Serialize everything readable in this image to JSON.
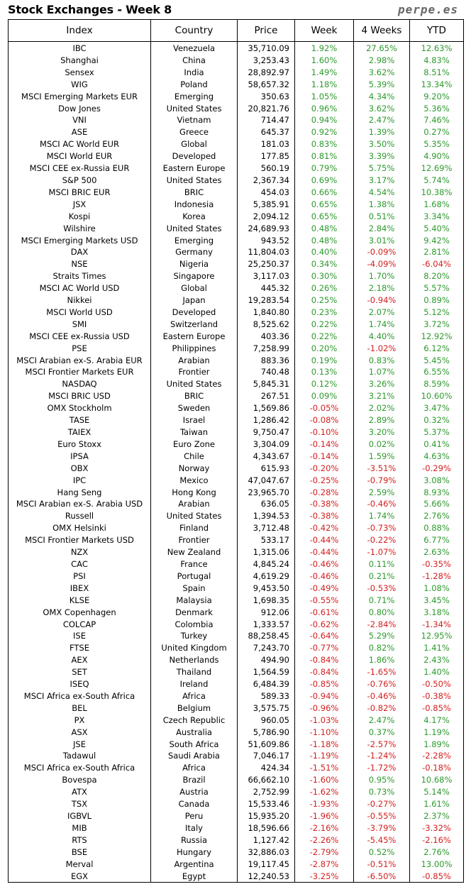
{
  "title": "Stock Exchanges - Week 8",
  "brand": "perpe.es",
  "colors": {
    "positive": "#2e9a2e",
    "negative": "#d42020"
  },
  "columns": [
    "Index",
    "Country",
    "Price",
    "Week",
    "4 Weeks",
    "YTD"
  ],
  "rows": [
    [
      "IBC",
      "Venezuela",
      "35,710.09",
      "1.92%",
      "27.65%",
      "12.63%"
    ],
    [
      "Shanghai",
      "China",
      "3,253.43",
      "1.60%",
      "2.98%",
      "4.83%"
    ],
    [
      "Sensex",
      "India",
      "28,892.97",
      "1.49%",
      "3.62%",
      "8.51%"
    ],
    [
      "WIG",
      "Poland",
      "58,657.32",
      "1.18%",
      "5.39%",
      "13.34%"
    ],
    [
      "MSCI Emerging Markets EUR",
      "Emerging",
      "350.63",
      "1.05%",
      "4.34%",
      "9.20%"
    ],
    [
      "Dow Jones",
      "United States",
      "20,821.76",
      "0.96%",
      "3.62%",
      "5.36%"
    ],
    [
      "VNI",
      "Vietnam",
      "714.47",
      "0.94%",
      "2.47%",
      "7.46%"
    ],
    [
      "ASE",
      "Greece",
      "645.37",
      "0.92%",
      "1.39%",
      "0.27%"
    ],
    [
      "MSCI AC World EUR",
      "Global",
      "181.03",
      "0.83%",
      "3.50%",
      "5.35%"
    ],
    [
      "MSCI World EUR",
      "Developed",
      "177.85",
      "0.81%",
      "3.39%",
      "4.90%"
    ],
    [
      "MSCI CEE ex-Russia EUR",
      "Eastern Europe",
      "560.19",
      "0.79%",
      "5.75%",
      "12.69%"
    ],
    [
      "S&P 500",
      "United States",
      "2,367.34",
      "0.69%",
      "3.17%",
      "5.74%"
    ],
    [
      "MSCI BRIC EUR",
      "BRIC",
      "454.03",
      "0.66%",
      "4.54%",
      "10.38%"
    ],
    [
      "JSX",
      "Indonesia",
      "5,385.91",
      "0.65%",
      "1.38%",
      "1.68%"
    ],
    [
      "Kospi",
      "Korea",
      "2,094.12",
      "0.65%",
      "0.51%",
      "3.34%"
    ],
    [
      "Wilshire",
      "United States",
      "24,689.93",
      "0.48%",
      "2.84%",
      "5.40%"
    ],
    [
      "MSCI Emerging Markets USD",
      "Emerging",
      "943.52",
      "0.48%",
      "3.01%",
      "9.42%"
    ],
    [
      "DAX",
      "Germany",
      "11,804.03",
      "0.40%",
      "-0.09%",
      "2.81%"
    ],
    [
      "NSE",
      "Nigeria",
      "25,250.37",
      "0.34%",
      "-4.09%",
      "-6.04%"
    ],
    [
      "Straits Times",
      "Singapore",
      "3,117.03",
      "0.30%",
      "1.70%",
      "8.20%"
    ],
    [
      "MSCI AC World USD",
      "Global",
      "445.32",
      "0.26%",
      "2.18%",
      "5.57%"
    ],
    [
      "Nikkei",
      "Japan",
      "19,283.54",
      "0.25%",
      "-0.94%",
      "0.89%"
    ],
    [
      "MSCI World USD",
      "Developed",
      "1,840.80",
      "0.23%",
      "2.07%",
      "5.12%"
    ],
    [
      "SMI",
      "Switzerland",
      "8,525.62",
      "0.22%",
      "1.74%",
      "3.72%"
    ],
    [
      "MSCI CEE ex-Russia USD",
      "Eastern Europe",
      "403.36",
      "0.22%",
      "4.40%",
      "12.92%"
    ],
    [
      "PSE",
      "Philippines",
      "7,258.99",
      "0.20%",
      "-1.02%",
      "6.12%"
    ],
    [
      "MSCI Arabian ex-S. Arabia EUR",
      "Arabian",
      "883.36",
      "0.19%",
      "0.83%",
      "5.45%"
    ],
    [
      "MSCI Frontier Markets EUR",
      "Frontier",
      "740.48",
      "0.13%",
      "1.07%",
      "6.55%"
    ],
    [
      "NASDAQ",
      "United States",
      "5,845.31",
      "0.12%",
      "3.26%",
      "8.59%"
    ],
    [
      "MSCI BRIC USD",
      "BRIC",
      "267.51",
      "0.09%",
      "3.21%",
      "10.60%"
    ],
    [
      "OMX Stockholm",
      "Sweden",
      "1,569.86",
      "-0.05%",
      "2.02%",
      "3.47%"
    ],
    [
      "TASE",
      "Israel",
      "1,286.42",
      "-0.08%",
      "2.89%",
      "0.32%"
    ],
    [
      "TAIEX",
      "Taiwan",
      "9,750.47",
      "-0.10%",
      "3.20%",
      "5.37%"
    ],
    [
      "Euro Stoxx",
      "Euro Zone",
      "3,304.09",
      "-0.14%",
      "0.02%",
      "0.41%"
    ],
    [
      "IPSA",
      "Chile",
      "4,343.67",
      "-0.14%",
      "1.59%",
      "4.63%"
    ],
    [
      "OBX",
      "Norway",
      "615.93",
      "-0.20%",
      "-3.51%",
      "-0.29%"
    ],
    [
      "IPC",
      "Mexico",
      "47,047.67",
      "-0.25%",
      "-0.79%",
      "3.08%"
    ],
    [
      "Hang Seng",
      "Hong Kong",
      "23,965.70",
      "-0.28%",
      "2.59%",
      "8.93%"
    ],
    [
      "MSCI Arabian ex-S. Arabia USD",
      "Arabian",
      "636.05",
      "-0.38%",
      "-0.46%",
      "5.66%"
    ],
    [
      "Russell",
      "United States",
      "1,394.53",
      "-0.38%",
      "1.74%",
      "2.76%"
    ],
    [
      "OMX Helsinki",
      "Finland",
      "3,712.48",
      "-0.42%",
      "-0.73%",
      "0.88%"
    ],
    [
      "MSCI Frontier Markets USD",
      "Frontier",
      "533.17",
      "-0.44%",
      "-0.22%",
      "6.77%"
    ],
    [
      "NZX",
      "New Zealand",
      "1,315.06",
      "-0.44%",
      "-1.07%",
      "2.63%"
    ],
    [
      "CAC",
      "France",
      "4,845.24",
      "-0.46%",
      "0.11%",
      "-0.35%"
    ],
    [
      "PSI",
      "Portugal",
      "4,619.29",
      "-0.46%",
      "0.21%",
      "-1.28%"
    ],
    [
      "IBEX",
      "Spain",
      "9,453.50",
      "-0.49%",
      "-0.53%",
      "1.08%"
    ],
    [
      "KLSE",
      "Malaysia",
      "1,698.35",
      "-0.55%",
      "0.71%",
      "3.45%"
    ],
    [
      "OMX Copenhagen",
      "Denmark",
      "912.06",
      "-0.61%",
      "0.80%",
      "3.18%"
    ],
    [
      "COLCAP",
      "Colombia",
      "1,333.57",
      "-0.62%",
      "-2.84%",
      "-1.34%"
    ],
    [
      "ISE",
      "Turkey",
      "88,258.45",
      "-0.64%",
      "5.29%",
      "12.95%"
    ],
    [
      "FTSE",
      "United Kingdom",
      "7,243.70",
      "-0.77%",
      "0.82%",
      "1.41%"
    ],
    [
      "AEX",
      "Netherlands",
      "494.90",
      "-0.84%",
      "1.86%",
      "2.43%"
    ],
    [
      "SET",
      "Thailand",
      "1,564.59",
      "-0.84%",
      "-1.65%",
      "1.40%"
    ],
    [
      "ISEQ",
      "Ireland",
      "6,484.39",
      "-0.85%",
      "-0.76%",
      "-0.50%"
    ],
    [
      "MSCI Africa ex-South Africa",
      "Africa",
      "589.33",
      "-0.94%",
      "-0.46%",
      "-0.38%"
    ],
    [
      "BEL",
      "Belgium",
      "3,575.75",
      "-0.96%",
      "-0.82%",
      "-0.85%"
    ],
    [
      "PX",
      "Czech Republic",
      "960.05",
      "-1.03%",
      "2.47%",
      "4.17%"
    ],
    [
      "ASX",
      "Australia",
      "5,786.90",
      "-1.10%",
      "0.37%",
      "1.19%"
    ],
    [
      "JSE",
      "South Africa",
      "51,609.86",
      "-1.18%",
      "-2.57%",
      "1.89%"
    ],
    [
      "Tadawul",
      "Saudi Arabia",
      "7,046.17",
      "-1.19%",
      "-1.24%",
      "-2.28%"
    ],
    [
      "MSCI Africa ex-South Africa",
      "Africa",
      "424.34",
      "-1.51%",
      "-1.72%",
      "-0.18%"
    ],
    [
      "Bovespa",
      "Brazil",
      "66,662.10",
      "-1.60%",
      "0.95%",
      "10.68%"
    ],
    [
      "ATX",
      "Austria",
      "2,752.99",
      "-1.62%",
      "0.73%",
      "5.14%"
    ],
    [
      "TSX",
      "Canada",
      "15,533.46",
      "-1.93%",
      "-0.27%",
      "1.61%"
    ],
    [
      "IGBVL",
      "Peru",
      "15,935.20",
      "-1.96%",
      "-0.55%",
      "2.37%"
    ],
    [
      "MIB",
      "Italy",
      "18,596.66",
      "-2.16%",
      "-3.79%",
      "-3.32%"
    ],
    [
      "RTS",
      "Russia",
      "1,127.42",
      "-2.26%",
      "-5.45%",
      "-2.16%"
    ],
    [
      "BSE",
      "Hungary",
      "32,886.03",
      "-2.79%",
      "0.52%",
      "2.76%"
    ],
    [
      "Merval",
      "Argentina",
      "19,117.45",
      "-2.87%",
      "-0.51%",
      "13.00%"
    ],
    [
      "EGX",
      "Egypt",
      "12,240.53",
      "-3.25%",
      "-6.50%",
      "-0.85%"
    ]
  ]
}
